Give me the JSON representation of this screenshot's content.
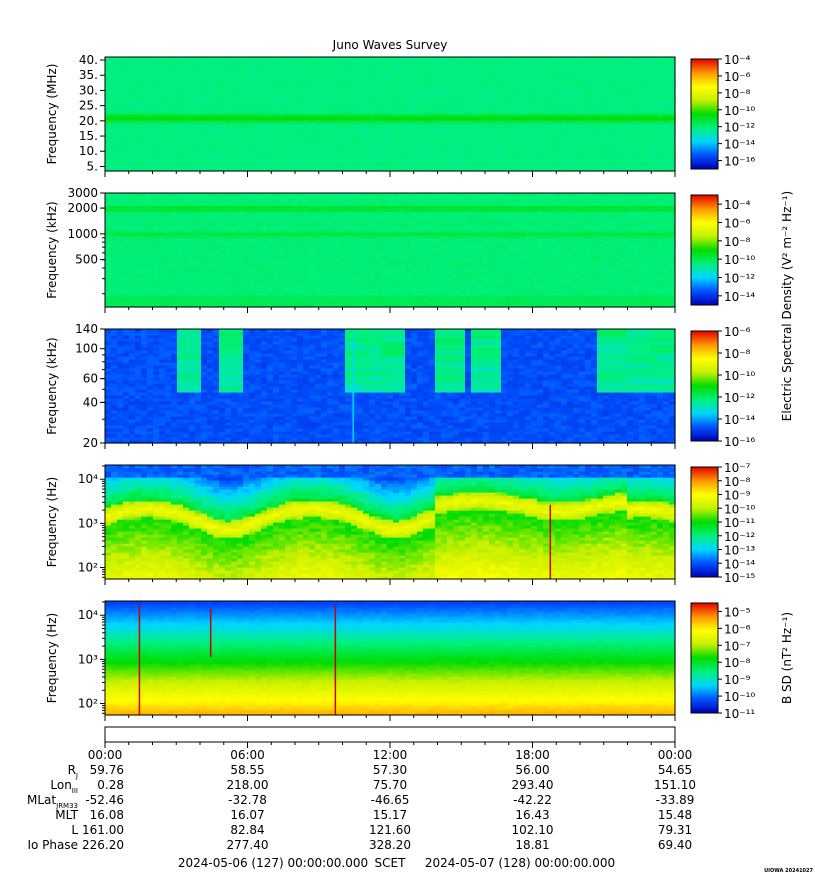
{
  "title": "Juno Waves Survey",
  "shared_cbar_label": "Electric Spectral Density (V² m⁻² Hz⁻¹)",
  "colors": {
    "scale": [
      "#0000b4",
      "#0050ff",
      "#00d7ff",
      "#00f07a",
      "#00dc00",
      "#c8f000",
      "#ffff00",
      "#ff9600",
      "#e10000"
    ]
  },
  "chart_data": [
    {
      "type": "heatmap",
      "panel": "hfwbr",
      "ylabel": "Frequency (MHz)",
      "yscale": "linear",
      "ylim": [
        3.5,
        41
      ],
      "yticks": [
        5,
        10,
        15,
        20,
        25,
        30,
        35,
        40
      ],
      "ytick_labels": [
        "5.",
        "10.",
        "15.",
        "20.",
        "25.",
        "30.",
        "35.",
        "40."
      ],
      "colorbar": {
        "log_min": -17,
        "log_max": -4,
        "labels": [
          "-4",
          "-6",
          "-8",
          "-10",
          "-12",
          "-14",
          "-16"
        ]
      },
      "features": {
        "background_level": 0.37,
        "band": {
          "y": 21,
          "level": 0.5
        }
      }
    },
    {
      "type": "heatmap",
      "panel": "hfr",
      "ylabel": "Frequency (kHz)",
      "yscale": "log",
      "ylim": [
        140,
        3000
      ],
      "yticks": [
        500,
        1000,
        2000,
        3000
      ],
      "ytick_labels": [
        "500",
        "1000",
        "2000",
        "3000"
      ],
      "colorbar": {
        "log_min": -15,
        "log_max": -3,
        "labels": [
          "-4",
          "-6",
          "-8",
          "-10",
          "-12",
          "-14"
        ]
      },
      "features": {
        "background_level": 0.38,
        "bands": [
          {
            "y": 2000,
            "level": 0.47
          },
          {
            "y": 1000,
            "level": 0.44
          }
        ]
      }
    },
    {
      "type": "heatmap",
      "panel": "lfr-high",
      "ylabel": "Frequency (kHz)",
      "yscale": "log",
      "ylim": [
        20,
        140
      ],
      "yticks": [
        20,
        40,
        60,
        100,
        140
      ],
      "ytick_labels": [
        "20",
        "40",
        "60",
        "100",
        "140"
      ],
      "colorbar": {
        "log_min": -16,
        "log_max": -6,
        "labels": [
          "-6",
          "-8",
          "-10",
          "-12",
          "-14",
          "-16"
        ]
      },
      "features": {
        "background_level": 0.12,
        "burst_hours": [
          3.5,
          5.3,
          10.5,
          11.3,
          12.1,
          14.5,
          16.0,
          21.3,
          22.6,
          23.6
        ],
        "spike_hours": [
          10.45
        ]
      }
    },
    {
      "type": "heatmap",
      "panel": "lfr-low",
      "ylabel": "Frequency (Hz)",
      "yscale": "log",
      "ylim": [
        55,
        21000
      ],
      "yticks": [
        100,
        1000,
        10000
      ],
      "ytick_labels": [
        "10²",
        "10³",
        "10⁴"
      ],
      "colorbar": {
        "log_min": -15,
        "log_max": -7,
        "labels": [
          "-7",
          "-8",
          "-9",
          "-10",
          "-11",
          "-12",
          "-13",
          "-14",
          "-15"
        ]
      },
      "features": {
        "band_center_hz": 1300,
        "band_level": 0.72,
        "spike_hours": [
          18.75
        ]
      }
    },
    {
      "type": "heatmap",
      "panel": "magnetic",
      "ylabel": "Frequency (Hz)",
      "yscale": "log",
      "ylim": [
        55,
        21000
      ],
      "yticks": [
        100,
        1000,
        10000
      ],
      "ytick_labels": [
        "10²",
        "10³",
        "10⁴"
      ],
      "cbar_label": "B SD (nT² Hz⁻¹)",
      "colorbar": {
        "log_min": -11,
        "log_max": -4.5,
        "labels": [
          "-5",
          "-6",
          "-7",
          "-8",
          "-9",
          "-10",
          "-11"
        ]
      },
      "features": {
        "spike_hours": [
          1.45,
          4.45,
          9.7
        ]
      }
    }
  ],
  "ephemeris": {
    "time_labels": [
      "00:00",
      "06:00",
      "12:00",
      "18:00",
      "00:00"
    ],
    "row_labels": [
      "R",
      "Lon",
      "MLat",
      "MLT",
      "L",
      "Io Phase"
    ],
    "row_subscripts": [
      "J",
      "III",
      "JRM33",
      "",
      "",
      ""
    ],
    "rows": [
      [
        "59.76",
        "58.55",
        "57.30",
        "56.00",
        "54.65"
      ],
      [
        "0.28",
        "218.00",
        "75.70",
        "293.40",
        "151.10"
      ],
      [
        "-52.46",
        "-32.78",
        "-46.65",
        "-42.22",
        "-33.89"
      ],
      [
        "16.08",
        "16.07",
        "15.17",
        "16.43",
        "15.48"
      ],
      [
        "161.00",
        "82.84",
        "121.60",
        "102.10",
        "79.31"
      ],
      [
        "226.20",
        "277.40",
        "328.20",
        "18.81",
        "69.40"
      ]
    ]
  },
  "footer": {
    "start": "2024-05-06 (127) 00:00:00.000",
    "scet": "SCET",
    "end": "2024-05-07 (128) 00:00:00.000",
    "stamp": "UIOWA 20241027"
  }
}
